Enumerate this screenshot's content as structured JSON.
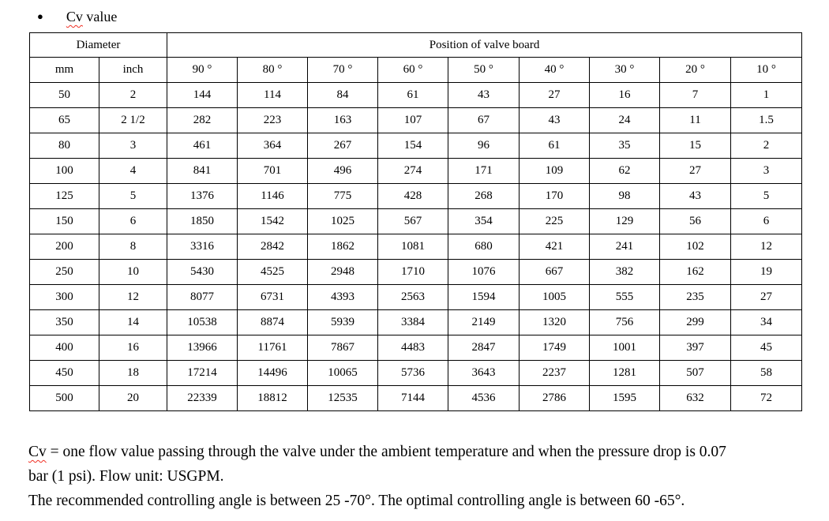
{
  "colors": {
    "background": "#ffffff",
    "text": "#000000",
    "table_border": "#000000",
    "squiggle": "#f03024"
  },
  "title": {
    "bullet_icon": "●",
    "misspelled_term": "Cv",
    "rest": " value"
  },
  "table": {
    "diameter_header": "Diameter",
    "position_header": "Position of valve board",
    "sub_headers": [
      "mm",
      "inch",
      "90 °",
      "80 °",
      "70 °",
      "60 °",
      "50 °",
      "40 °",
      "30 °",
      "20 °",
      "10 °"
    ],
    "rows": [
      [
        "50",
        "2",
        "144",
        "114",
        "84",
        "61",
        "43",
        "27",
        "16",
        "7",
        "1"
      ],
      [
        "65",
        "2 1/2",
        "282",
        "223",
        "163",
        "107",
        "67",
        "43",
        "24",
        "11",
        "1.5"
      ],
      [
        "80",
        "3",
        "461",
        "364",
        "267",
        "154",
        "96",
        "61",
        "35",
        "15",
        "2"
      ],
      [
        "100",
        "4",
        "841",
        "701",
        "496",
        "274",
        "171",
        "109",
        "62",
        "27",
        "3"
      ],
      [
        "125",
        "5",
        "1376",
        "1146",
        "775",
        "428",
        "268",
        "170",
        "98",
        "43",
        "5"
      ],
      [
        "150",
        "6",
        "1850",
        "1542",
        "1025",
        "567",
        "354",
        "225",
        "129",
        "56",
        "6"
      ],
      [
        "200",
        "8",
        "3316",
        "2842",
        "1862",
        "1081",
        "680",
        "421",
        "241",
        "102",
        "12"
      ],
      [
        "250",
        "10",
        "5430",
        "4525",
        "2948",
        "1710",
        "1076",
        "667",
        "382",
        "162",
        "19"
      ],
      [
        "300",
        "12",
        "8077",
        "6731",
        "4393",
        "2563",
        "1594",
        "1005",
        "555",
        "235",
        "27"
      ],
      [
        "350",
        "14",
        "10538",
        "8874",
        "5939",
        "3384",
        "2149",
        "1320",
        "756",
        "299",
        "34"
      ],
      [
        "400",
        "16",
        "13966",
        "11761",
        "7867",
        "4483",
        "2847",
        "1749",
        "1001",
        "397",
        "45"
      ],
      [
        "450",
        "18",
        "17214",
        "14496",
        "10065",
        "5736",
        "3643",
        "2237",
        "1281",
        "507",
        "58"
      ],
      [
        "500",
        "20",
        "22339",
        "18812",
        "12535",
        "7144",
        "4536",
        "2786",
        "1595",
        "632",
        "72"
      ]
    ]
  },
  "footer": {
    "misspelled_term": "Cv",
    "line1_rest": " = one flow value passing through the valve under the ambient temperature and when the pressure drop is 0.07",
    "line2": "bar (1 psi). Flow unit: USGPM.",
    "line3": "The recommended controlling angle is between 25 -70°. The optimal controlling angle is between 60 -65°."
  }
}
